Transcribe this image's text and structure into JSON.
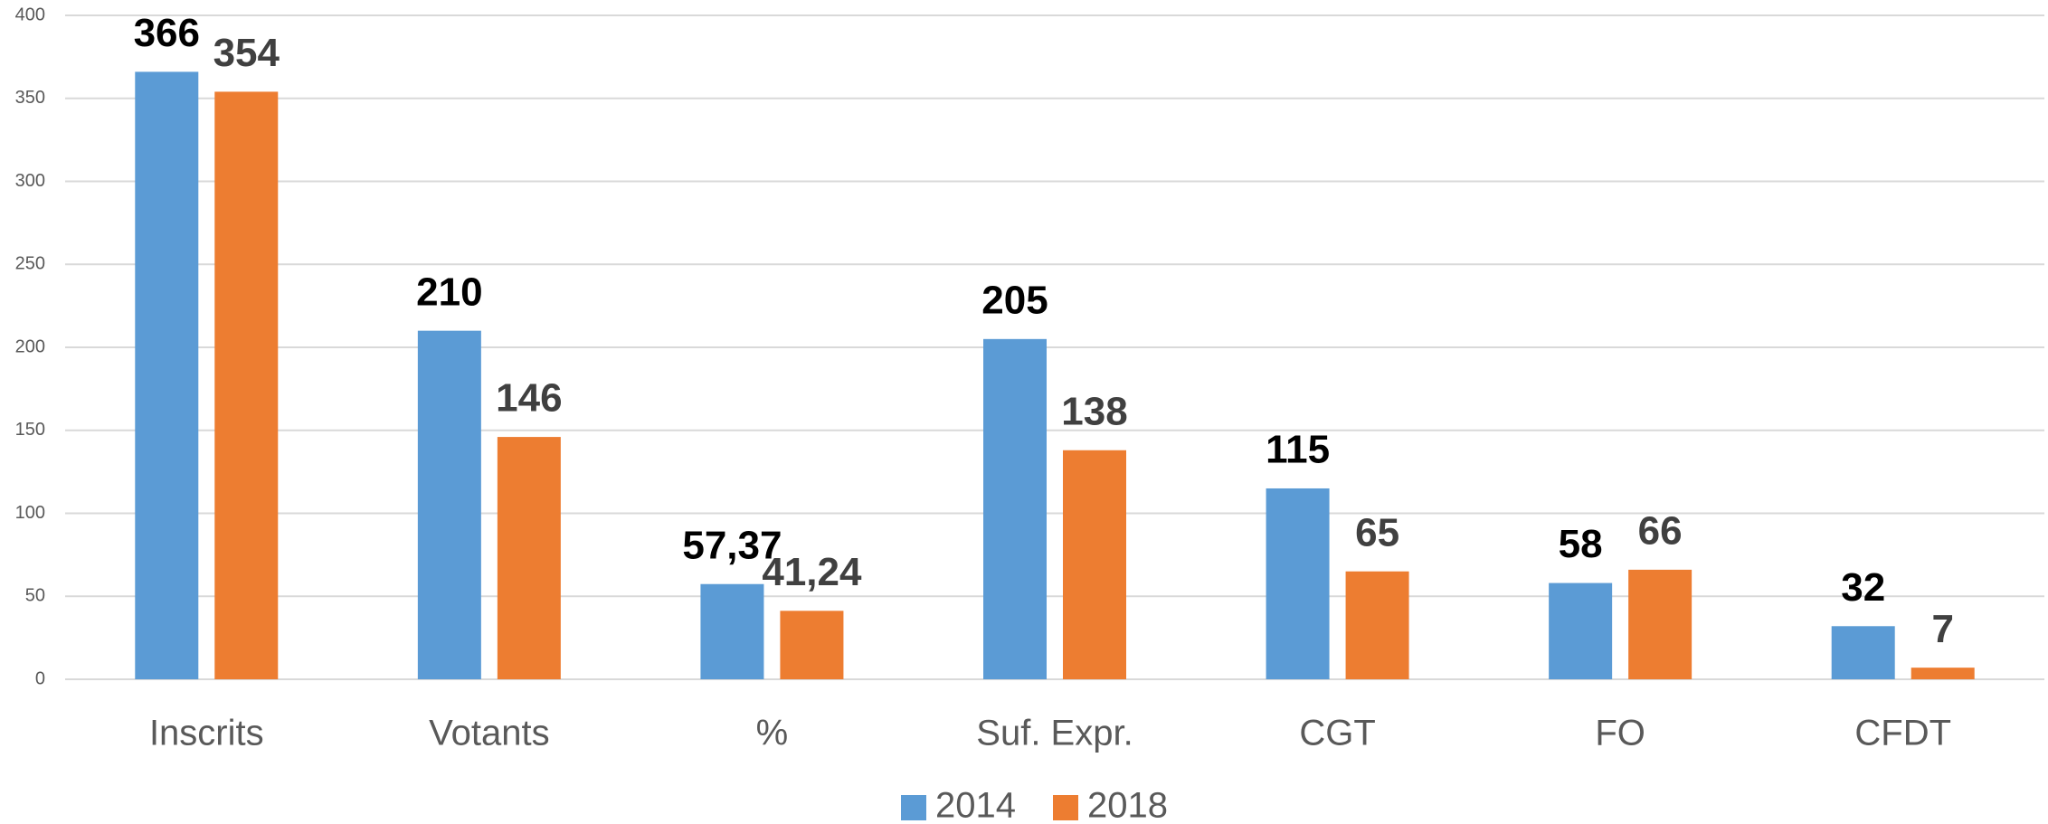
{
  "chart_data": {
    "type": "bar",
    "categories": [
      "Inscrits",
      "Votants",
      "%",
      "Suf. Expr.",
      "CGT",
      "FO",
      "CFDT"
    ],
    "series": [
      {
        "name": "2014",
        "color": "#5b9bd5",
        "values": [
          366,
          210,
          57.37,
          205,
          115,
          58,
          32
        ],
        "value_labels": [
          "366",
          "210",
          "57,37",
          "205",
          "115",
          "58",
          "32"
        ],
        "label_color": "#000000"
      },
      {
        "name": "2018",
        "color": "#ed7d31",
        "values": [
          354,
          146,
          41.24,
          138,
          65,
          66,
          7
        ],
        "value_labels": [
          "354",
          "146",
          "41,24",
          "138",
          "65",
          "66",
          "7"
        ],
        "label_color": "#404040"
      }
    ],
    "ylim": [
      0,
      400
    ],
    "yticks": [
      0,
      50,
      100,
      150,
      200,
      250,
      300,
      350,
      400
    ],
    "grid": true,
    "legend": "bottom"
  }
}
